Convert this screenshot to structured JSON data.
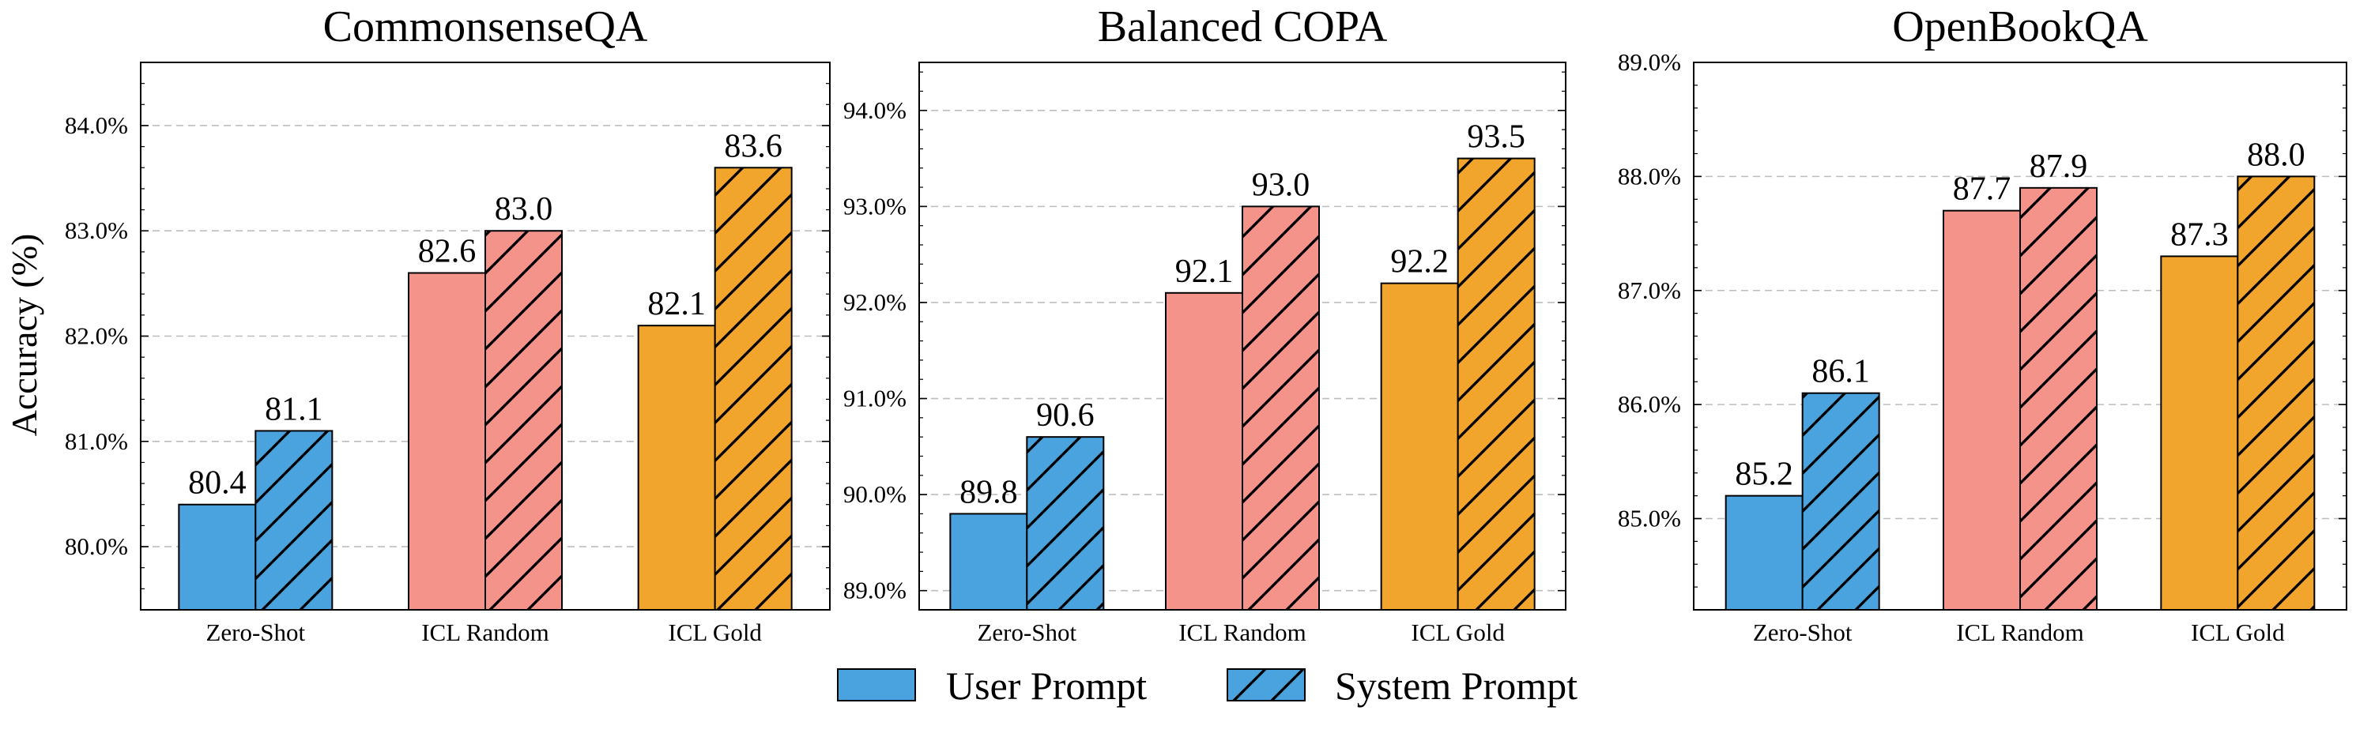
{
  "colors": {
    "user_prompt": "#4aa3de",
    "system_prompt": [
      "#4aa3de",
      "#f4938a",
      "#f2a52c"
    ],
    "grid": "#bdbdbd",
    "edge": "#000000"
  },
  "shared_ylabel": "Accuracy (%)",
  "legend": {
    "placement": "bottom-center",
    "items": [
      {
        "label": "User Prompt",
        "hatch": false,
        "color": "#4aa3de"
      },
      {
        "label": "System Prompt",
        "hatch": true,
        "color": "#4aa3de"
      }
    ]
  },
  "chart_data": [
    {
      "type": "bar",
      "title": "CommonsenseQA",
      "categories": [
        "Zero-Shot",
        "ICL Random",
        "ICL Gold"
      ],
      "category_colors": [
        "#4aa3de",
        "#f4938a",
        "#f2a52c"
      ],
      "series": [
        {
          "name": "User Prompt",
          "values": [
            80.4,
            82.6,
            82.1
          ],
          "labels": [
            "80.4",
            "82.6",
            "82.1"
          ]
        },
        {
          "name": "System Prompt",
          "values": [
            81.1,
            83.0,
            83.6
          ],
          "labels": [
            "81.1",
            "83.0",
            "83.6"
          ],
          "hatch": true
        }
      ],
      "ylim": [
        79.4,
        84.6
      ],
      "yticks": [
        80.0,
        81.0,
        82.0,
        83.0,
        84.0
      ],
      "ytick_labels": [
        "80.0%",
        "81.0%",
        "82.0%",
        "83.0%",
        "84.0%"
      ],
      "ylabel": "Accuracy (%)",
      "grid": true
    },
    {
      "type": "bar",
      "title": "Balanced COPA",
      "categories": [
        "Zero-Shot",
        "ICL Random",
        "ICL Gold"
      ],
      "category_colors": [
        "#4aa3de",
        "#f4938a",
        "#f2a52c"
      ],
      "series": [
        {
          "name": "User Prompt",
          "values": [
            89.8,
            92.1,
            92.2
          ],
          "labels": [
            "89.8",
            "92.1",
            "92.2"
          ]
        },
        {
          "name": "System Prompt",
          "values": [
            90.6,
            93.0,
            93.5
          ],
          "labels": [
            "90.6",
            "93.0",
            "93.5"
          ],
          "hatch": true
        }
      ],
      "ylim": [
        88.8,
        94.5
      ],
      "yticks": [
        89.0,
        90.0,
        91.0,
        92.0,
        93.0,
        94.0
      ],
      "ytick_labels": [
        "89.0%",
        "90.0%",
        "91.0%",
        "92.0%",
        "93.0%",
        "94.0%"
      ],
      "ylabel": "",
      "grid": true
    },
    {
      "type": "bar",
      "title": "OpenBookQA",
      "categories": [
        "Zero-Shot",
        "ICL Random",
        "ICL Gold"
      ],
      "category_colors": [
        "#4aa3de",
        "#f4938a",
        "#f2a52c"
      ],
      "series": [
        {
          "name": "User Prompt",
          "values": [
            85.2,
            87.7,
            87.3
          ],
          "labels": [
            "85.2",
            "87.7",
            "87.3"
          ]
        },
        {
          "name": "System Prompt",
          "values": [
            86.1,
            87.9,
            88.0
          ],
          "labels": [
            "86.1",
            "87.9",
            "88.0"
          ],
          "hatch": true
        }
      ],
      "ylim": [
        84.2,
        89.0
      ],
      "yticks": [
        85.0,
        86.0,
        87.0,
        88.0,
        89.0
      ],
      "ytick_labels": [
        "85.0%",
        "86.0%",
        "87.0%",
        "88.0%",
        "89.0%"
      ],
      "ylabel": "",
      "grid": true
    }
  ]
}
